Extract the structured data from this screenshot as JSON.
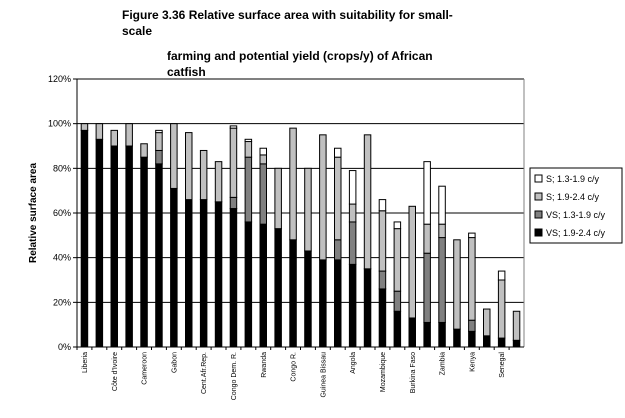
{
  "chart_data": {
    "type": "bar",
    "stacked": true,
    "title_lines": [
      "Figure 3.36 Relative surface area with suitability for small-",
      "scale",
      "farming and potential yield (crops/y) of African",
      "catfish"
    ],
    "xlabel": "",
    "ylabel": "Relative surface area",
    "ylim": [
      0,
      120
    ],
    "yticks": [
      "0%",
      "20%",
      "40%",
      "60%",
      "80%",
      "100%",
      "120%"
    ],
    "ytick_values": [
      0,
      20,
      40,
      60,
      80,
      100,
      120
    ],
    "grid": true,
    "legend_position": "right",
    "categories": [
      "Liberia",
      "",
      "Côte d'Ivoire",
      "",
      "Cameroon",
      "",
      "Gabon",
      "",
      "Cent.Afr.Rep.",
      "",
      "Congo Dem. R.",
      "",
      "Rwanda",
      "",
      "Congo R.",
      "",
      "Guinea Bissau",
      "",
      "Angola",
      "",
      "Mozambique",
      "",
      "Burkina Faso",
      "",
      "Zambia",
      "",
      "Kenya",
      "",
      "Senegal",
      ""
    ],
    "series": [
      {
        "name": "VS; 1.9-2.4 c/y",
        "color": "#000000",
        "values": [
          97,
          93,
          90,
          90,
          85,
          82,
          71,
          66,
          66,
          65,
          62,
          56,
          55,
          53,
          48,
          43,
          39,
          39,
          37,
          35,
          26,
          16,
          13,
          11,
          11,
          8,
          7,
          5,
          4,
          3
        ]
      },
      {
        "name": "VS; 1.3-1.9 c/y",
        "color": "#808080",
        "values": [
          0,
          0,
          0,
          0,
          0,
          6,
          0,
          0,
          0,
          0,
          5,
          29,
          27,
          0,
          0,
          0,
          0,
          9,
          19,
          0,
          8,
          9,
          0,
          31,
          38,
          0,
          5,
          0,
          0,
          0
        ]
      },
      {
        "name": "S; 1.9-2.4 c/y",
        "color": "#c0c0c0",
        "values": [
          3,
          7,
          7,
          10,
          6,
          8,
          29,
          30,
          22,
          18,
          31,
          7,
          4,
          27,
          50,
          37,
          56,
          37,
          8,
          60,
          27,
          28,
          50,
          13,
          6,
          40,
          37,
          12,
          26,
          13
        ]
      },
      {
        "name": "S; 1.3-1.9 c/y",
        "color": "#ffffff",
        "values": [
          0,
          0,
          0,
          0,
          0,
          1,
          0,
          0,
          0,
          0,
          1,
          1,
          3,
          0,
          0,
          0,
          0,
          4,
          15,
          0,
          5,
          3,
          0,
          28,
          17,
          0,
          2,
          0,
          4,
          0
        ]
      }
    ],
    "legend_order": [
      3,
      2,
      1,
      0
    ]
  }
}
